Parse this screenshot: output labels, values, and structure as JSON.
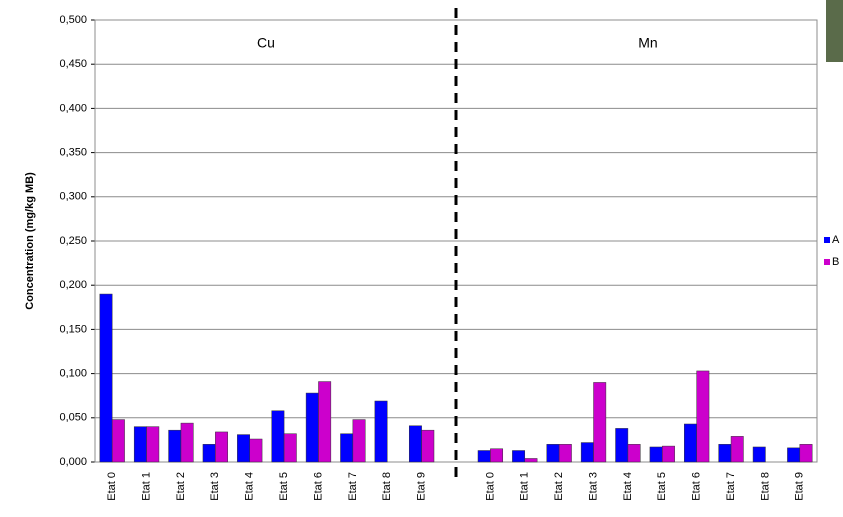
{
  "chart_data": {
    "type": "bar",
    "y_label": "Concentration (mg/kg MB)",
    "annotations": [
      "Cu",
      "Mn"
    ],
    "categories": [
      "Etat 0",
      "Etat 1",
      "Etat 2",
      "Etat 3",
      "Etat 4",
      "Etat 5",
      "Etat 6",
      "Etat 7",
      "Etat 8",
      "Etat 9",
      null,
      "Etat 0",
      "Etat 1",
      "Etat 2",
      "Etat 3",
      "Etat 4",
      "Etat 5",
      "Etat 6",
      "Etat 7",
      "Etat 8",
      "Etat 9"
    ],
    "series": [
      {
        "name": "A",
        "color": "#0000ff",
        "values": [
          0.19,
          0.04,
          0.036,
          0.02,
          0.031,
          0.058,
          0.078,
          0.032,
          0.069,
          0.041,
          null,
          0.013,
          0.013,
          0.02,
          0.022,
          0.038,
          0.017,
          0.043,
          0.02,
          0.017,
          0.016
        ]
      },
      {
        "name": "B",
        "color": "#cc00cc",
        "values": [
          0.048,
          0.04,
          0.044,
          0.034,
          0.026,
          0.032,
          0.091,
          0.048,
          0,
          0.036,
          null,
          0.015,
          0.004,
          0.02,
          0.09,
          0.02,
          0.018,
          0.103,
          0.029,
          0,
          0.02
        ]
      }
    ],
    "ylim": [
      0,
      0.5
    ],
    "yticks": [
      {
        "value": 0,
        "label": "0,000"
      },
      {
        "value": 0.05,
        "label": "0,050"
      },
      {
        "value": 0.1,
        "label": "0,100"
      },
      {
        "value": 0.15,
        "label": "0,150"
      },
      {
        "value": 0.2,
        "label": "0,200"
      },
      {
        "value": 0.25,
        "label": "0,250"
      },
      {
        "value": 0.3,
        "label": "0,300"
      },
      {
        "value": 0.35,
        "label": "0,350"
      },
      {
        "value": 0.4,
        "label": "0,400"
      },
      {
        "value": 0.45,
        "label": "0,450"
      },
      {
        "value": 0.5,
        "label": "0,500"
      }
    ],
    "grid": true
  }
}
